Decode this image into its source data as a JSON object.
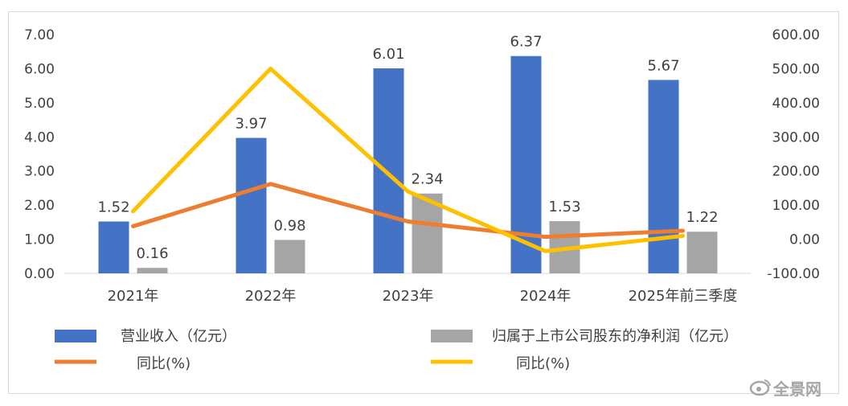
{
  "chart_data": {
    "type": "bar",
    "categories": [
      "2021年",
      "2022年",
      "2023年",
      "2024年",
      "2025年前三季度"
    ],
    "y_left": {
      "ylim": [
        0,
        7
      ],
      "ticks": [
        "0.00",
        "1.00",
        "2.00",
        "3.00",
        "4.00",
        "5.00",
        "6.00",
        "7.00"
      ]
    },
    "y_right": {
      "ylim": [
        -100,
        600
      ],
      "ticks": [
        "-100.00",
        "0.00",
        "100.00",
        "200.00",
        "300.00",
        "400.00",
        "500.00",
        "600.00"
      ]
    },
    "series": [
      {
        "name": "营业收入（亿元）",
        "kind": "bar",
        "axis": "left",
        "color": "#4472c4",
        "values": [
          1.52,
          3.97,
          6.01,
          6.37,
          5.67
        ],
        "labels": [
          "1.52",
          "3.97",
          "6.01",
          "6.37",
          "5.67"
        ]
      },
      {
        "name": "归属于上市公司股东的净利润（亿元）",
        "kind": "bar",
        "axis": "left",
        "color": "#a5a5a5",
        "values": [
          0.16,
          0.98,
          2.34,
          1.53,
          1.22
        ],
        "labels": [
          "0.16",
          "0.98",
          "2.34",
          "1.53",
          "1.22"
        ]
      },
      {
        "name": "同比(%)",
        "kind": "line",
        "axis": "right",
        "color": "#ed7d31",
        "values": [
          38,
          162,
          52,
          7,
          25
        ]
      },
      {
        "name": "同比(%)",
        "kind": "line",
        "axis": "right",
        "color": "#ffc000",
        "values": [
          82,
          500,
          140,
          -35,
          10
        ]
      }
    ],
    "grid": false,
    "legend": "bottom"
  },
  "watermark": "全景网"
}
